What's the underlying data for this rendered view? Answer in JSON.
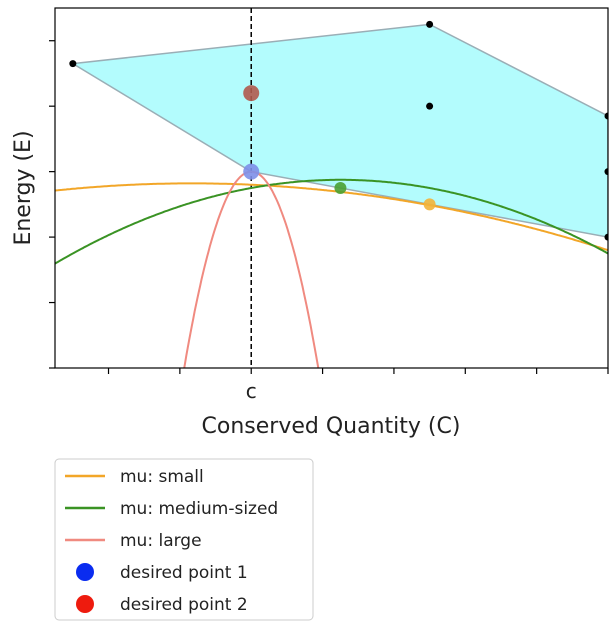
{
  "chart_data": {
    "type": "line",
    "title": "",
    "xlabel": "Conserved Quantity (C)",
    "ylabel": "Energy (E)",
    "xlim": [
      -5.5,
      10
    ],
    "ylim": [
      -6,
      5
    ],
    "grid": false,
    "legend_placement": "below",
    "x_tick_values": [
      -4,
      -2,
      0,
      2,
      4,
      6,
      8,
      10
    ],
    "x_tick_labels": [
      "",
      "",
      "c",
      "",
      "",
      "",
      "",
      ""
    ],
    "y_tick_values": [
      -6,
      -4,
      -2,
      0,
      2,
      4
    ],
    "vertical_line": {
      "x": 0,
      "style": "dashed",
      "color": "#000000"
    },
    "hull": {
      "fill": "#b3fcfd",
      "edge": "#9aaeb6",
      "vertices": [
        [
          -5,
          3.3
        ],
        [
          5,
          4.5
        ],
        [
          10,
          1.7
        ],
        [
          10,
          -2
        ],
        [
          5,
          -1
        ],
        [
          0,
          0
        ]
      ]
    },
    "black_points": [
      [
        -5,
        3.3
      ],
      [
        5,
        4.5
      ],
      [
        5,
        2
      ],
      [
        10,
        1.7
      ],
      [
        10,
        0
      ],
      [
        10,
        -2
      ]
    ],
    "series": [
      {
        "name": "mu: small",
        "kind": "curve",
        "color": "#f2a628",
        "a": -0.015,
        "b": -0.05,
        "d": -0.4
      },
      {
        "name": "mu: medium-sized",
        "kind": "curve",
        "color": "#3a9324",
        "a": -0.04,
        "b": 0.2,
        "d": -0.5
      },
      {
        "name": "mu: large",
        "kind": "curve",
        "color": "#f08a80",
        "a": -1.7,
        "b": 0,
        "d": 0
      },
      {
        "name": "desired point 1",
        "kind": "marker",
        "color": "#0a2cf0",
        "x": 0,
        "y": 0
      },
      {
        "name": "desired point 2",
        "kind": "marker",
        "color": "#ee1b0e",
        "x": 0,
        "y": 2.4
      }
    ],
    "overlay_points": [
      {
        "x": 0,
        "y": 2.4,
        "color": "#b05a4e"
      },
      {
        "x": 0,
        "y": 0,
        "color": "#7d8fe8"
      },
      {
        "x": 2.5,
        "y": -0.5,
        "color": "#4aa133"
      },
      {
        "x": 5,
        "y": -1,
        "color": "#f2b43a"
      }
    ]
  }
}
